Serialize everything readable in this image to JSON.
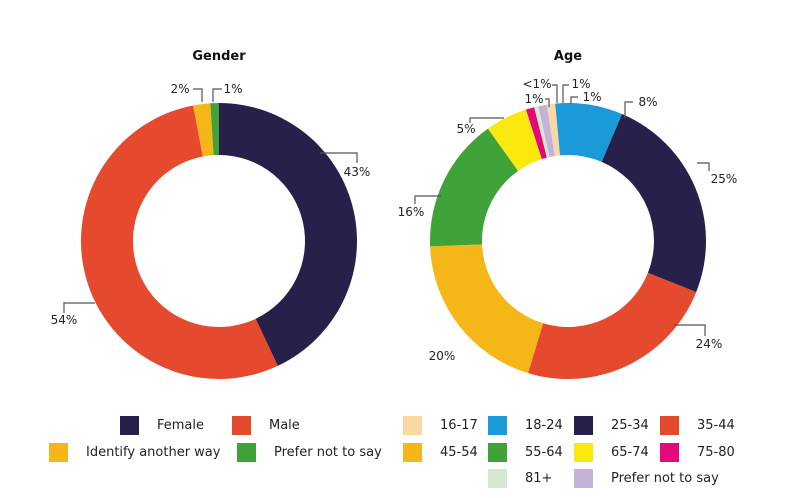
{
  "chart_data": [
    {
      "type": "pie",
      "variant": "donut",
      "title": "Gender",
      "slices": [
        {
          "label": "Female",
          "value": 43,
          "display": "43%",
          "color": "#26204a"
        },
        {
          "label": "Male",
          "value": 54,
          "display": "54%",
          "color": "#e64a2e"
        },
        {
          "label": "Identify another way",
          "value": 2,
          "display": "2%",
          "color": "#f5b617"
        },
        {
          "label": "Prefer not to say",
          "value": 1,
          "display": "1%",
          "color": "#3fa33a"
        }
      ],
      "legend_placement": "bottom"
    },
    {
      "type": "pie",
      "variant": "donut",
      "title": "Age",
      "slices": [
        {
          "label": "16-17",
          "value": 1,
          "display": "1%",
          "color": "#fad8a3"
        },
        {
          "label": "18-24",
          "value": 8,
          "display": "8%",
          "color": "#1a9ad9"
        },
        {
          "label": "25-34",
          "value": 25,
          "display": "25%",
          "color": "#26204a"
        },
        {
          "label": "35-44",
          "value": 24,
          "display": "24%",
          "color": "#e64a2e"
        },
        {
          "label": "45-54",
          "value": 20,
          "display": "20%",
          "color": "#f5b617"
        },
        {
          "label": "55-64",
          "value": 16,
          "display": "16%",
          "color": "#3fa33a"
        },
        {
          "label": "65-74",
          "value": 5,
          "display": "5%",
          "color": "#fbe80f"
        },
        {
          "label": "75-80",
          "value": 1,
          "display": "1%",
          "color": "#e3097a"
        },
        {
          "label": "81+",
          "value": 0.5,
          "display": "<1%",
          "color": "#d6e8cf"
        },
        {
          "label": "Prefer not to say",
          "value": 1,
          "display": "1%",
          "color": "#c4b3d9"
        }
      ],
      "legend_placement": "bottom"
    }
  ],
  "legends": {
    "gender": [
      "Female",
      "Male",
      "Identify another way",
      "Prefer not to say"
    ],
    "age": [
      "16-17",
      "18-24",
      "25-34",
      "35-44",
      "45-54",
      "55-64",
      "65-74",
      "75-80",
      "81+",
      "Prefer not to say"
    ]
  }
}
